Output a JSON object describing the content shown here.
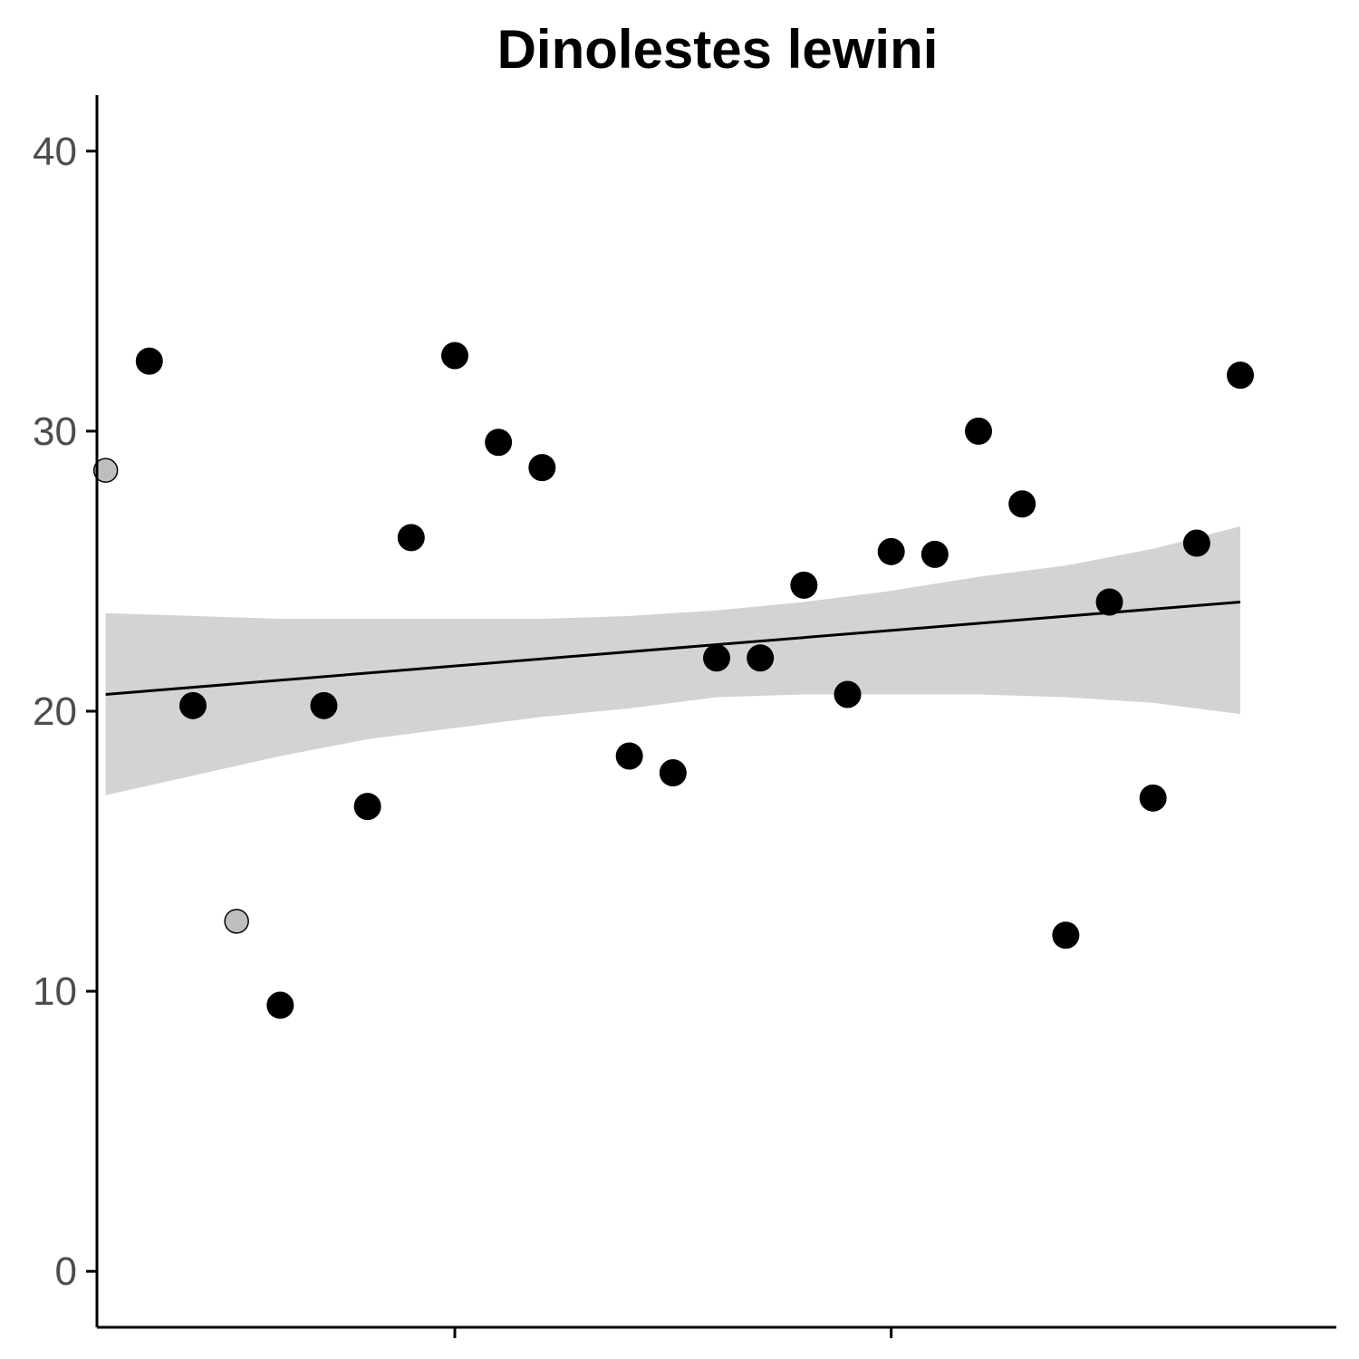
{
  "chart_data": {
    "type": "scatter",
    "title": "Dinolestes lewini",
    "xlabel": "",
    "ylabel": "",
    "ylim": [
      -2,
      42
    ],
    "yticks": [
      0,
      10,
      20,
      30,
      40
    ],
    "xlim": [
      -0.2,
      28.2
    ],
    "xticks": [
      8,
      18
    ],
    "xtick_labels": [
      "",
      ""
    ],
    "grid": false,
    "legend": "none",
    "points": [
      {
        "x": 0,
        "y": 28.6,
        "style": "grey"
      },
      {
        "x": 1,
        "y": 32.5,
        "style": "black"
      },
      {
        "x": 2,
        "y": 20.2,
        "style": "black"
      },
      {
        "x": 3,
        "y": 12.5,
        "style": "grey"
      },
      {
        "x": 4,
        "y": 9.5,
        "style": "black"
      },
      {
        "x": 5,
        "y": 20.2,
        "style": "black"
      },
      {
        "x": 6,
        "y": 16.6,
        "style": "black"
      },
      {
        "x": 7,
        "y": 26.2,
        "style": "black"
      },
      {
        "x": 8,
        "y": 32.7,
        "style": "black"
      },
      {
        "x": 9,
        "y": 29.6,
        "style": "black"
      },
      {
        "x": 10,
        "y": 28.7,
        "style": "black"
      },
      {
        "x": 12,
        "y": 18.4,
        "style": "black"
      },
      {
        "x": 13,
        "y": 17.8,
        "style": "black"
      },
      {
        "x": 14,
        "y": 21.9,
        "style": "black"
      },
      {
        "x": 15,
        "y": 21.9,
        "style": "black"
      },
      {
        "x": 16,
        "y": 24.5,
        "style": "black"
      },
      {
        "x": 17,
        "y": 20.6,
        "style": "black"
      },
      {
        "x": 18,
        "y": 25.7,
        "style": "black"
      },
      {
        "x": 19,
        "y": 25.6,
        "style": "black"
      },
      {
        "x": 20,
        "y": 30.0,
        "style": "black"
      },
      {
        "x": 21,
        "y": 27.4,
        "style": "black"
      },
      {
        "x": 22,
        "y": 12.0,
        "style": "black"
      },
      {
        "x": 23,
        "y": 23.9,
        "style": "black"
      },
      {
        "x": 24,
        "y": 16.9,
        "style": "black"
      },
      {
        "x": 25,
        "y": 26.0,
        "style": "black"
      },
      {
        "x": 26,
        "y": 32.0,
        "style": "black"
      }
    ],
    "trend_line": {
      "x": [
        0,
        26
      ],
      "y": [
        20.6,
        23.9
      ]
    },
    "confidence_band": {
      "x": [
        0,
        2,
        4,
        6,
        8,
        10,
        12,
        14,
        16,
        18,
        20,
        22,
        24,
        26
      ],
      "upper": [
        23.5,
        23.4,
        23.3,
        23.3,
        23.3,
        23.3,
        23.4,
        23.6,
        23.9,
        24.3,
        24.8,
        25.2,
        25.8,
        26.6
      ],
      "lower": [
        17.0,
        17.7,
        18.4,
        19.0,
        19.4,
        19.8,
        20.1,
        20.5,
        20.6,
        20.6,
        20.6,
        20.5,
        20.3,
        19.9
      ]
    },
    "colors": {
      "point_fill": "#000000",
      "grey_point_fill": "#bebebe",
      "band_fill": "#d3d3d3",
      "line": "#000000",
      "axis": "#000000",
      "tick_label": "#4d4d4d"
    }
  }
}
